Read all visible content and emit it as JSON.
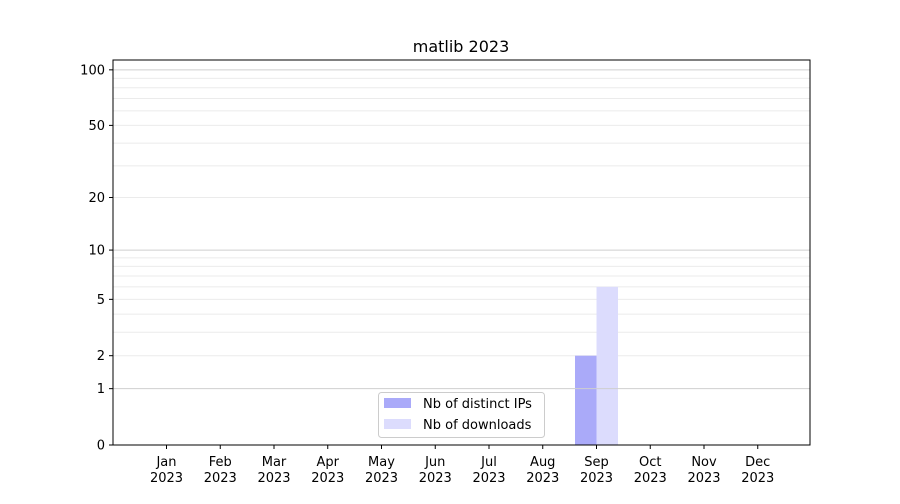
{
  "chart_data": {
    "type": "bar",
    "title": "matlib 2023",
    "xlabel": "",
    "ylabel": "",
    "yscale": "log(1+y)",
    "ylim": [
      0,
      113
    ],
    "yticks": [
      0,
      1,
      2,
      5,
      10,
      20,
      50,
      100
    ],
    "ytick_labels": [
      "0",
      "1",
      "2",
      "5",
      "10",
      "20",
      "50",
      "100"
    ],
    "categories": [
      "Jan\n2023",
      "Feb\n2023",
      "Mar\n2023",
      "Apr\n2023",
      "May\n2023",
      "Jun\n2023",
      "Jul\n2023",
      "Aug\n2023",
      "Sep\n2023",
      "Oct\n2023",
      "Nov\n2023",
      "Dec\n2023"
    ],
    "category_months": [
      "Jan",
      "Feb",
      "Mar",
      "Apr",
      "May",
      "Jun",
      "Jul",
      "Aug",
      "Sep",
      "Oct",
      "Nov",
      "Dec"
    ],
    "category_year": "2023",
    "series": [
      {
        "name": "Nb of distinct IPs",
        "color": "#aaaaf9",
        "values": [
          0,
          0,
          0,
          0,
          0,
          0,
          0,
          0,
          2,
          0,
          0,
          0
        ]
      },
      {
        "name": "Nb of downloads",
        "color": "#dcdcfd",
        "values": [
          0,
          0,
          0,
          0,
          0,
          0,
          0,
          0,
          6,
          0,
          0,
          0
        ]
      }
    ],
    "grid": true,
    "legend_position": "bottom-center"
  }
}
